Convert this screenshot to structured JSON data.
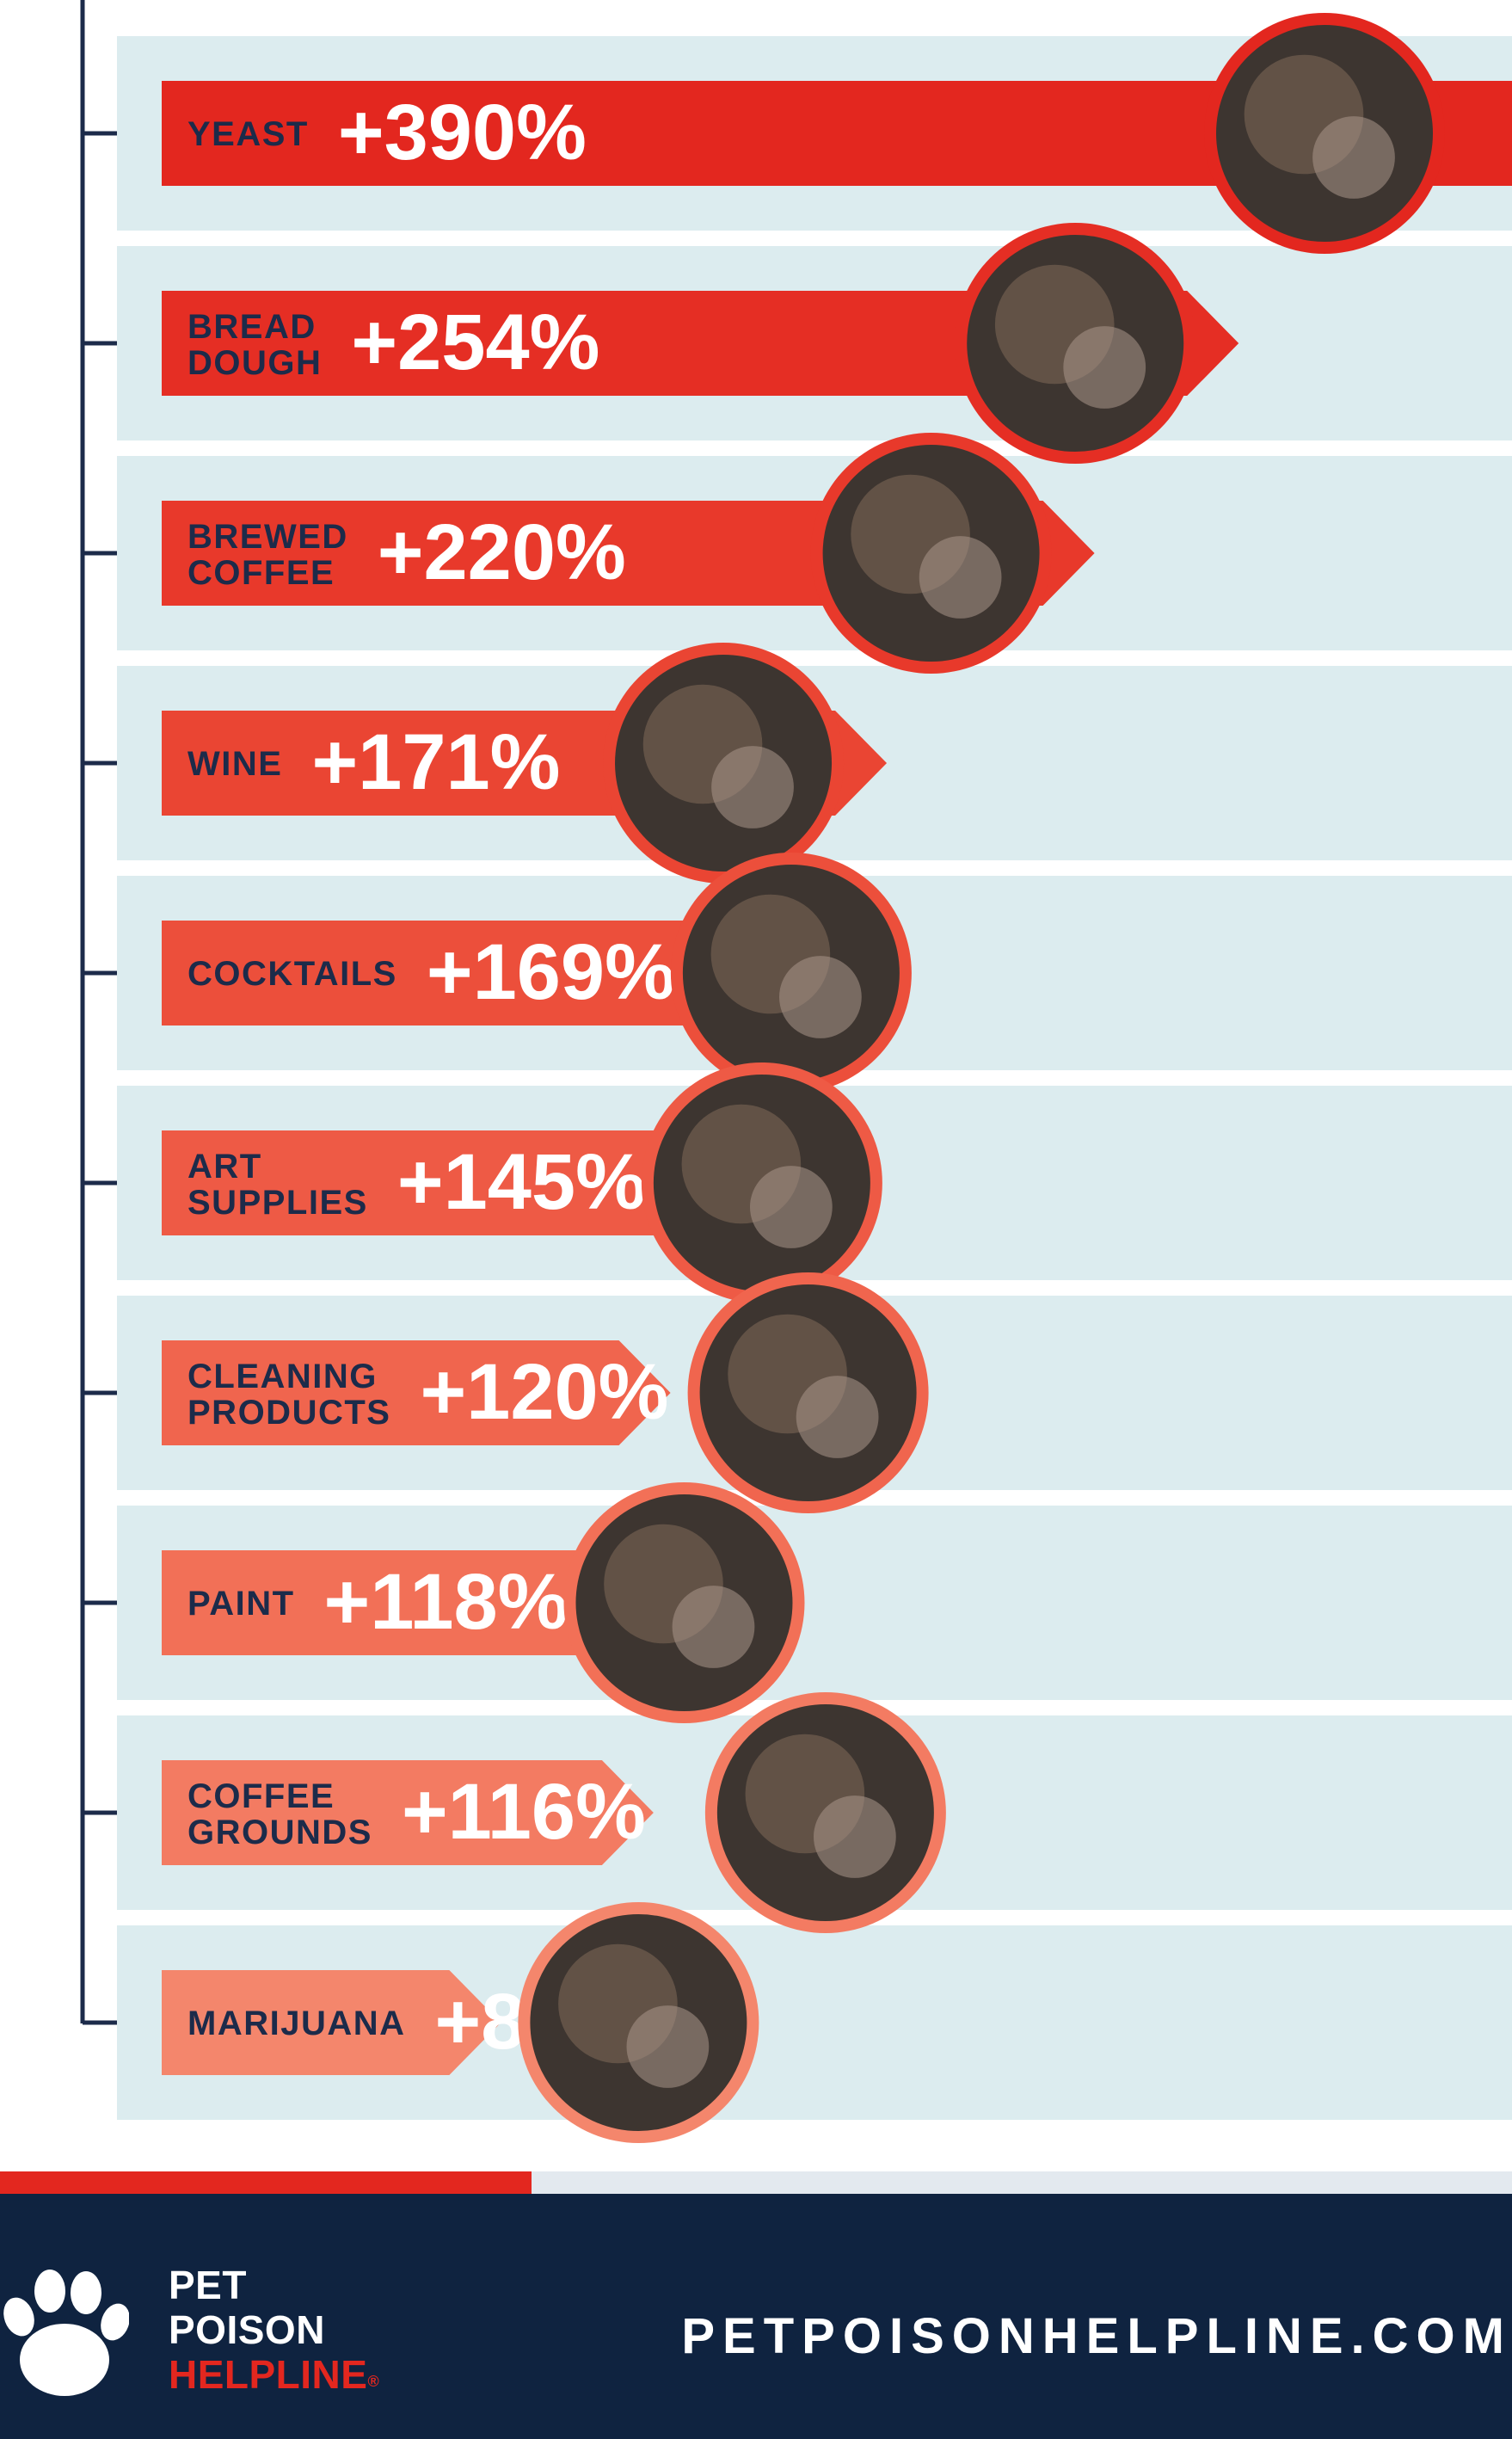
{
  "chart_data": {
    "type": "bar",
    "unit": "%",
    "categories": [
      [
        "YEAST"
      ],
      [
        "BREAD",
        "DOUGH"
      ],
      [
        "BREWED",
        "COFFEE"
      ],
      [
        "WINE"
      ],
      [
        "COCKTAILS"
      ],
      [
        "ART",
        "SUPPLIES"
      ],
      [
        "CLEANING",
        "PRODUCTS"
      ],
      [
        "PAINT"
      ],
      [
        "COFFEE",
        "GROUNDS"
      ],
      [
        "MARIJUANA"
      ]
    ],
    "values": [
      390,
      254,
      220,
      171,
      169,
      145,
      120,
      118,
      116,
      80
    ],
    "value_labels": [
      "+390%",
      "+254%",
      "+220%",
      "+171%",
      "+169%",
      "+145%",
      "+120%",
      "+118%",
      "+116%",
      "+80%"
    ],
    "icons": [
      "yeast-bowl-photo",
      "bread-dough-photo",
      "brewed-coffee-photo",
      "wine-photo",
      "cocktail-photo",
      "art-supplies-photo",
      "cleaning-products-photo",
      "paint-cans-photo",
      "coffee-grounds-photo",
      "marijuana-photo"
    ],
    "colors": [
      "#e3271f",
      "#e52e24",
      "#e8392b",
      "#ea4533",
      "#ec4f3b",
      "#ee5a45",
      "#f0654e",
      "#f27057",
      "#f37b62",
      "#f4866c"
    ],
    "axis_color": "#1c2b4a",
    "band_color": "#dcecef"
  },
  "footer": {
    "brand_line1": "PET",
    "brand_line2": "POISON",
    "brand_line3": "HELPLINE",
    "brand_mark": "®",
    "website": "PETPOISONHELPLINE.COM",
    "icon": "paw-print-icon",
    "background": "#0f2340",
    "accent": "#e3271f"
  }
}
